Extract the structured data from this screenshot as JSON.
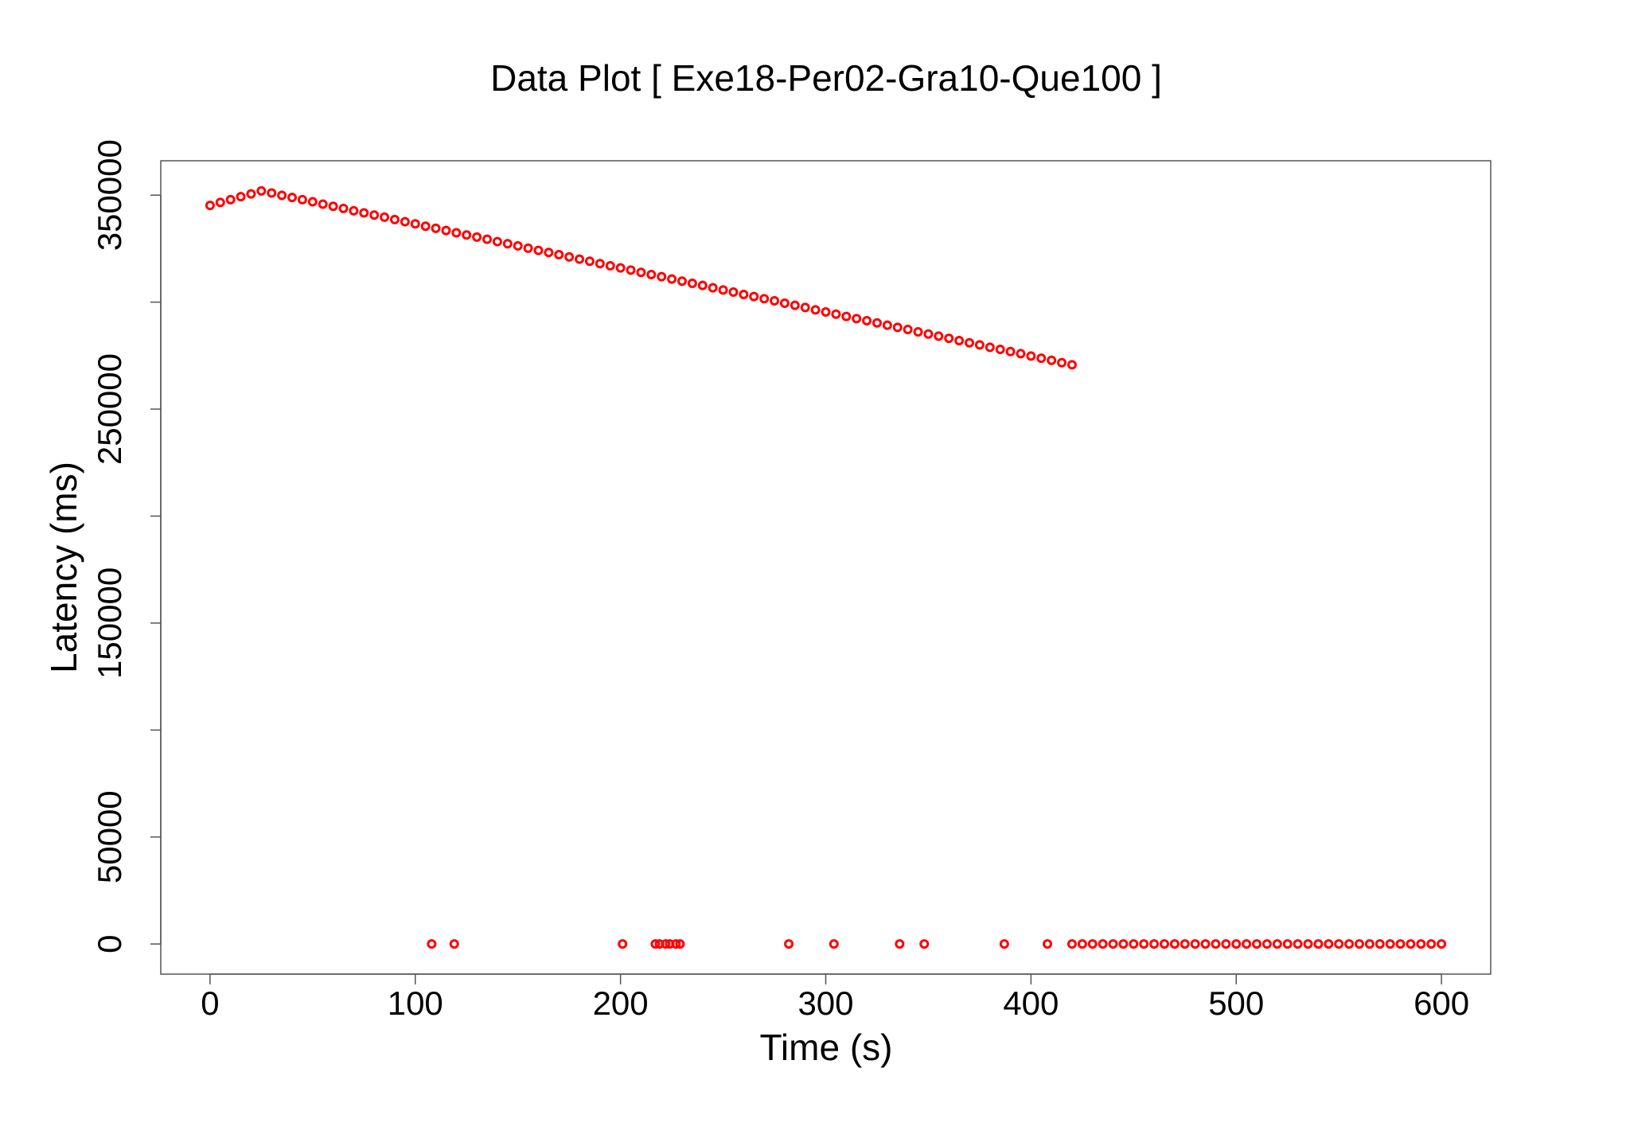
{
  "chart_data": {
    "type": "scatter",
    "title": "Data Plot [ Exe18-Per02-Gra10-Que100 ]",
    "xlabel": "Time (s)",
    "ylabel": "Latency (ms)",
    "xlim": [
      -24,
      624
    ],
    "ylim": [
      -14080,
      366080
    ],
    "xticks": [
      0,
      100,
      200,
      300,
      400,
      500,
      600
    ],
    "yticks": [
      0,
      50000,
      150000,
      250000,
      350000
    ],
    "yticks_minor": [
      100000,
      200000,
      300000
    ],
    "series": [
      {
        "color": "#ff0000",
        "x": [
          0,
          5,
          10,
          15,
          20,
          25,
          30,
          35,
          40,
          45,
          50,
          55,
          60,
          65,
          70,
          75,
          80,
          85,
          90,
          95,
          100,
          105,
          110,
          115,
          120,
          125,
          130,
          135,
          140,
          145,
          150,
          155,
          160,
          165,
          170,
          175,
          180,
          185,
          190,
          195,
          200,
          205,
          210,
          215,
          220,
          225,
          230,
          235,
          240,
          245,
          250,
          255,
          260,
          265,
          270,
          275,
          280,
          285,
          290,
          295,
          300,
          305,
          310,
          315,
          320,
          325,
          330,
          335,
          340,
          345,
          350,
          355,
          360,
          365,
          370,
          375,
          380,
          385,
          390,
          395,
          400,
          405,
          410,
          415,
          420,
          108,
          119,
          201,
          217,
          219,
          222,
          224,
          227,
          229,
          282,
          304,
          336,
          348,
          387,
          408,
          420,
          425,
          430,
          435,
          440,
          445,
          450,
          455,
          460,
          465,
          470,
          475,
          480,
          485,
          490,
          495,
          500,
          505,
          510,
          515,
          520,
          525,
          530,
          535,
          540,
          545,
          550,
          555,
          560,
          565,
          570,
          575,
          580,
          585,
          590,
          595,
          600
        ],
        "y": [
          345200,
          346600,
          347900,
          349300,
          350600,
          352000,
          351000,
          349900,
          348900,
          347900,
          346900,
          345800,
          344800,
          343800,
          342700,
          341700,
          340700,
          339700,
          338600,
          337600,
          336600,
          335500,
          334500,
          333500,
          332400,
          331400,
          330400,
          329400,
          328300,
          327300,
          326300,
          325200,
          324200,
          323200,
          322200,
          321100,
          320100,
          319100,
          318000,
          317000,
          316000,
          315000,
          313900,
          312900,
          311900,
          310800,
          309800,
          308800,
          307800,
          306700,
          305700,
          304700,
          303600,
          302600,
          301600,
          300600,
          299500,
          298500,
          297500,
          296400,
          295400,
          294400,
          293300,
          292300,
          291300,
          290300,
          289200,
          288200,
          287200,
          286100,
          285100,
          284100,
          283100,
          282000,
          281000,
          280000,
          278900,
          277900,
          276900,
          275900,
          274800,
          273800,
          272800,
          271700,
          270700,
          0,
          0,
          0,
          0,
          0,
          0,
          0,
          0,
          0,
          0,
          0,
          0,
          0,
          0,
          0,
          0,
          0,
          0,
          0,
          0,
          0,
          0,
          0,
          0,
          0,
          0,
          0,
          0,
          0,
          0,
          0,
          0,
          0,
          0,
          0,
          0,
          0,
          0,
          0,
          0,
          0,
          0,
          0,
          0,
          0,
          0,
          0,
          0,
          0,
          0,
          0,
          0
        ]
      }
    ]
  }
}
